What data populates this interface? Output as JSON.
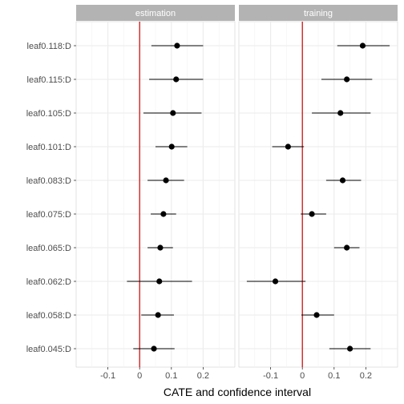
{
  "chart_data": {
    "type": "scatter",
    "subtype": "forest-plot",
    "xlabel": "CATE and confidence interval",
    "ylabel": "",
    "xlim": [
      -0.2,
      0.3
    ],
    "xticks": [
      -0.1,
      0,
      0.1,
      0.2
    ],
    "xtick_labels": [
      "-0.1",
      "0",
      "0.1",
      "0.2"
    ],
    "reference_line": 0,
    "grid": true,
    "categories": [
      "leaf0.118:D",
      "leaf0.115:D",
      "leaf0.105:D",
      "leaf0.101:D",
      "leaf0.083:D",
      "leaf0.075:D",
      "leaf0.065:D",
      "leaf0.062:D",
      "leaf0.058:D",
      "leaf0.045:D"
    ],
    "colors": {
      "point": "#000000",
      "reference": "#cc0000",
      "panel": "#ffffff",
      "strip": "#b3b3b3",
      "grid": "#ebebeb"
    },
    "panels": [
      {
        "name": "estimation",
        "estimate": [
          0.118,
          0.115,
          0.105,
          0.101,
          0.083,
          0.075,
          0.065,
          0.062,
          0.058,
          0.045
        ],
        "lower": [
          0.037,
          0.03,
          0.012,
          0.05,
          0.025,
          0.035,
          0.025,
          -0.04,
          0.005,
          -0.02
        ],
        "upper": [
          0.2,
          0.2,
          0.195,
          0.15,
          0.14,
          0.115,
          0.105,
          0.165,
          0.108,
          0.11
        ]
      },
      {
        "name": "training",
        "estimate": [
          0.19,
          0.14,
          0.12,
          -0.045,
          0.127,
          0.03,
          0.14,
          -0.085,
          0.045,
          0.15
        ],
        "lower": [
          0.11,
          0.06,
          0.03,
          -0.095,
          0.075,
          -0.005,
          0.1,
          -0.175,
          -0.003,
          0.085
        ],
        "upper": [
          0.275,
          0.22,
          0.215,
          0.005,
          0.185,
          0.075,
          0.18,
          0.01,
          0.1,
          0.215
        ]
      }
    ]
  }
}
